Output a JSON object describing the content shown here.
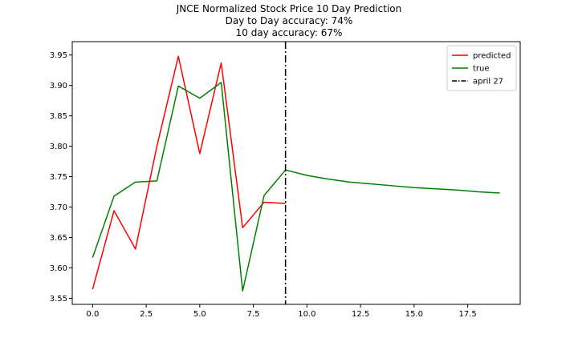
{
  "chart_data": {
    "type": "line",
    "title": [
      "JNCE Normalized Stock Price 10 Day Prediction",
      "Day to Day accuracy: 74%",
      "10 day accuracy: 67%"
    ],
    "xlabel": "",
    "ylabel": "",
    "xlim": [
      -0.95,
      19.95
    ],
    "ylim": [
      3.54,
      3.972
    ],
    "xticks": [
      0.0,
      2.5,
      5.0,
      7.5,
      10.0,
      12.5,
      15.0,
      17.5
    ],
    "xtick_labels": [
      "0.0",
      "2.5",
      "5.0",
      "7.5",
      "10.0",
      "12.5",
      "15.0",
      "17.5"
    ],
    "yticks": [
      3.55,
      3.6,
      3.65,
      3.7,
      3.75,
      3.8,
      3.85,
      3.9,
      3.95
    ],
    "ytick_labels": [
      "3.55",
      "3.60",
      "3.65",
      "3.70",
      "3.75",
      "3.80",
      "3.85",
      "3.90",
      "3.95"
    ],
    "grid": false,
    "legend_position": "top-right",
    "series": [
      {
        "name": "predicted",
        "color": "#ff0000",
        "x": [
          0,
          1,
          2,
          3,
          4,
          5,
          6,
          7,
          8,
          9
        ],
        "y": [
          3.565,
          3.694,
          3.631,
          3.8,
          3.948,
          3.788,
          3.937,
          3.666,
          3.708,
          3.706
        ]
      },
      {
        "name": "true",
        "color": "#008000",
        "x": [
          0,
          1,
          2,
          3,
          4,
          5,
          6,
          7,
          8,
          9,
          10,
          11,
          12,
          13,
          14,
          15,
          16,
          17,
          18,
          19
        ],
        "y": [
          3.617,
          3.718,
          3.741,
          3.743,
          3.899,
          3.879,
          3.905,
          3.562,
          3.719,
          3.761,
          3.752,
          3.746,
          3.741,
          3.738,
          3.735,
          3.732,
          3.73,
          3.728,
          3.725,
          3.723
        ]
      }
    ],
    "vline": {
      "name": "april 27",
      "x": 9,
      "color": "#000000",
      "style": "dash-dot"
    }
  }
}
